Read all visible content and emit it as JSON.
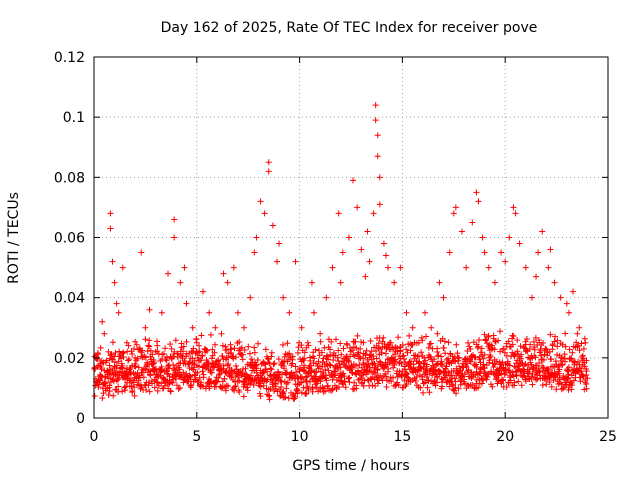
{
  "chart_data": {
    "type": "scatter",
    "title": "Day 162 of 2025, Rate Of TEC Index for receiver pove",
    "xlabel": "GPS time / hours",
    "ylabel": "ROTI / TECUs",
    "xlim": [
      0,
      25
    ],
    "ylim": [
      0,
      0.12
    ],
    "x_ticks": [
      "0",
      "5",
      "10",
      "15",
      "20",
      "25"
    ],
    "y_ticks": [
      "0",
      "0.02",
      "0.04",
      "0.06",
      "0.08",
      "0.1",
      "0.12"
    ],
    "x_tick_values": [
      0,
      5,
      10,
      15,
      20,
      25
    ],
    "y_tick_values": [
      0,
      0.02,
      0.04,
      0.06,
      0.08,
      0.1,
      0.12
    ],
    "grid": true,
    "marker": "+",
    "color": "#ff0000",
    "points": [
      [
        0.1,
        0.012
      ],
      [
        0.3,
        0.018
      ],
      [
        0.5,
        0.028
      ],
      [
        0.7,
        0.022
      ],
      [
        0.8,
        0.068
      ],
      [
        0.8,
        0.063
      ],
      [
        0.9,
        0.052
      ],
      [
        1.0,
        0.045
      ],
      [
        1.2,
        0.035
      ],
      [
        1.4,
        0.05
      ],
      [
        1.6,
        0.025
      ],
      [
        1.8,
        0.015
      ],
      [
        2.0,
        0.02
      ],
      [
        2.3,
        0.055
      ],
      [
        2.5,
        0.03
      ],
      [
        2.8,
        0.018
      ],
      [
        3.0,
        0.022
      ],
      [
        3.3,
        0.035
      ],
      [
        3.6,
        0.048
      ],
      [
        3.9,
        0.066
      ],
      [
        3.9,
        0.06
      ],
      [
        4.2,
        0.045
      ],
      [
        4.5,
        0.038
      ],
      [
        4.8,
        0.03
      ],
      [
        5.0,
        0.025
      ],
      [
        5.3,
        0.042
      ],
      [
        5.6,
        0.035
      ],
      [
        5.9,
        0.03
      ],
      [
        6.2,
        0.028
      ],
      [
        6.5,
        0.045
      ],
      [
        6.8,
        0.05
      ],
      [
        7.0,
        0.035
      ],
      [
        7.3,
        0.03
      ],
      [
        7.6,
        0.04
      ],
      [
        7.9,
        0.06
      ],
      [
        8.1,
        0.072
      ],
      [
        8.3,
        0.068
      ],
      [
        8.5,
        0.085
      ],
      [
        8.5,
        0.082
      ],
      [
        8.7,
        0.064
      ],
      [
        8.9,
        0.052
      ],
      [
        9.2,
        0.04
      ],
      [
        9.5,
        0.035
      ],
      [
        9.8,
        0.052
      ],
      [
        10.1,
        0.03
      ],
      [
        10.4,
        0.025
      ],
      [
        10.7,
        0.035
      ],
      [
        11.0,
        0.028
      ],
      [
        11.3,
        0.04
      ],
      [
        11.6,
        0.05
      ],
      [
        11.9,
        0.068
      ],
      [
        12.1,
        0.055
      ],
      [
        12.4,
        0.06
      ],
      [
        12.6,
        0.079
      ],
      [
        12.8,
        0.07
      ],
      [
        13.0,
        0.056
      ],
      [
        13.2,
        0.047
      ],
      [
        13.4,
        0.052
      ],
      [
        13.6,
        0.068
      ],
      [
        13.7,
        0.104
      ],
      [
        13.7,
        0.099
      ],
      [
        13.8,
        0.094
      ],
      [
        13.8,
        0.087
      ],
      [
        13.9,
        0.08
      ],
      [
        13.9,
        0.071
      ],
      [
        14.1,
        0.058
      ],
      [
        14.3,
        0.05
      ],
      [
        14.6,
        0.045
      ],
      [
        14.9,
        0.05
      ],
      [
        15.2,
        0.035
      ],
      [
        15.5,
        0.03
      ],
      [
        15.8,
        0.025
      ],
      [
        16.1,
        0.035
      ],
      [
        16.4,
        0.03
      ],
      [
        16.7,
        0.028
      ],
      [
        17.0,
        0.04
      ],
      [
        17.3,
        0.055
      ],
      [
        17.6,
        0.07
      ],
      [
        17.9,
        0.062
      ],
      [
        18.1,
        0.05
      ],
      [
        18.4,
        0.065
      ],
      [
        18.6,
        0.075
      ],
      [
        18.7,
        0.072
      ],
      [
        18.9,
        0.06
      ],
      [
        19.2,
        0.05
      ],
      [
        19.5,
        0.045
      ],
      [
        19.8,
        0.055
      ],
      [
        20.2,
        0.06
      ],
      [
        20.4,
        0.07
      ],
      [
        20.5,
        0.068
      ],
      [
        20.7,
        0.058
      ],
      [
        21.0,
        0.05
      ],
      [
        21.3,
        0.04
      ],
      [
        21.6,
        0.055
      ],
      [
        21.8,
        0.062
      ],
      [
        22.1,
        0.05
      ],
      [
        22.4,
        0.045
      ],
      [
        22.7,
        0.04
      ],
      [
        23.0,
        0.038
      ],
      [
        23.3,
        0.042
      ],
      [
        23.6,
        0.03
      ],
      [
        23.9,
        0.025
      ],
      [
        0.4,
        0.032
      ],
      [
        1.1,
        0.038
      ],
      [
        2.7,
        0.036
      ],
      [
        4.4,
        0.05
      ],
      [
        6.3,
        0.048
      ],
      [
        7.8,
        0.055
      ],
      [
        9.0,
        0.058
      ],
      [
        10.6,
        0.045
      ],
      [
        12.0,
        0.045
      ],
      [
        13.3,
        0.062
      ],
      [
        14.2,
        0.054
      ],
      [
        16.8,
        0.045
      ],
      [
        17.5,
        0.068
      ],
      [
        19.0,
        0.055
      ],
      [
        20.0,
        0.052
      ],
      [
        21.5,
        0.047
      ],
      [
        22.2,
        0.056
      ],
      [
        23.1,
        0.035
      ]
    ],
    "band": {
      "description_values": "dense baseline cloud",
      "x_step_hours": 0.05,
      "y_center": [
        0.014,
        0.015,
        0.016,
        0.016,
        0.017,
        0.017,
        0.016,
        0.015,
        0.014,
        0.014,
        0.015,
        0.016,
        0.017,
        0.018,
        0.018,
        0.017,
        0.016,
        0.016,
        0.017,
        0.018,
        0.018,
        0.018,
        0.017,
        0.017,
        0.016
      ],
      "y_spread_low": 0.008,
      "y_spread_high": 0.012
    }
  }
}
